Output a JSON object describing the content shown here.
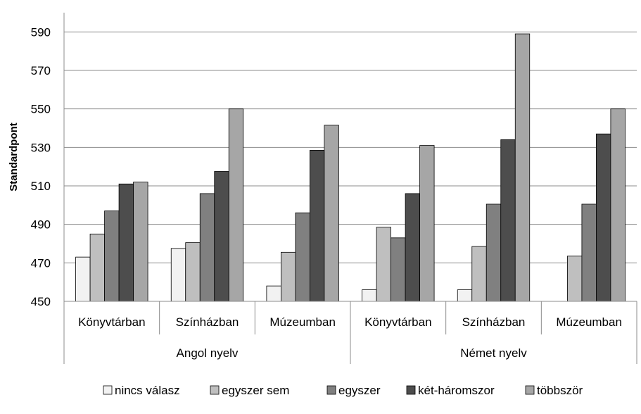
{
  "chart_data": {
    "type": "bar",
    "ylabel": "Standardpont",
    "ylim": [
      450,
      600
    ],
    "yticks": [
      450,
      470,
      490,
      510,
      530,
      550,
      570,
      590
    ],
    "grid": true,
    "legend_position": "bottom",
    "groups": [
      {
        "label": "Angol nyelv",
        "categories": [
          "Könyvtárban",
          "Színházban",
          "Múzeumban"
        ]
      },
      {
        "label": "Német nyelv",
        "categories": [
          "Könyvtárban",
          "Színházban",
          "Múzeumban"
        ]
      }
    ],
    "categories": [
      "Könyvtárban",
      "Színházban",
      "Múzeumban",
      "Könyvtárban",
      "Színházban",
      "Múzeumban"
    ],
    "series": [
      {
        "name": "nincs válasz",
        "color": "#f2f2f2",
        "values": [
          473,
          477.5,
          458,
          456,
          456,
          null
        ]
      },
      {
        "name": "egyszer sem",
        "color": "#bfbfbf",
        "values": [
          485,
          480.5,
          475.5,
          488.5,
          478.5,
          473.5
        ]
      },
      {
        "name": "egyszer",
        "color": "#808080",
        "values": [
          497,
          506,
          496,
          483,
          500.5,
          500.5
        ]
      },
      {
        "name": "két-háromszor",
        "color": "#4d4d4d",
        "values": [
          511,
          517.5,
          528.5,
          506,
          534,
          537
        ]
      },
      {
        "name": "többször",
        "color": "#a6a6a6",
        "values": [
          512,
          550,
          541.5,
          531,
          589,
          550
        ]
      }
    ]
  }
}
